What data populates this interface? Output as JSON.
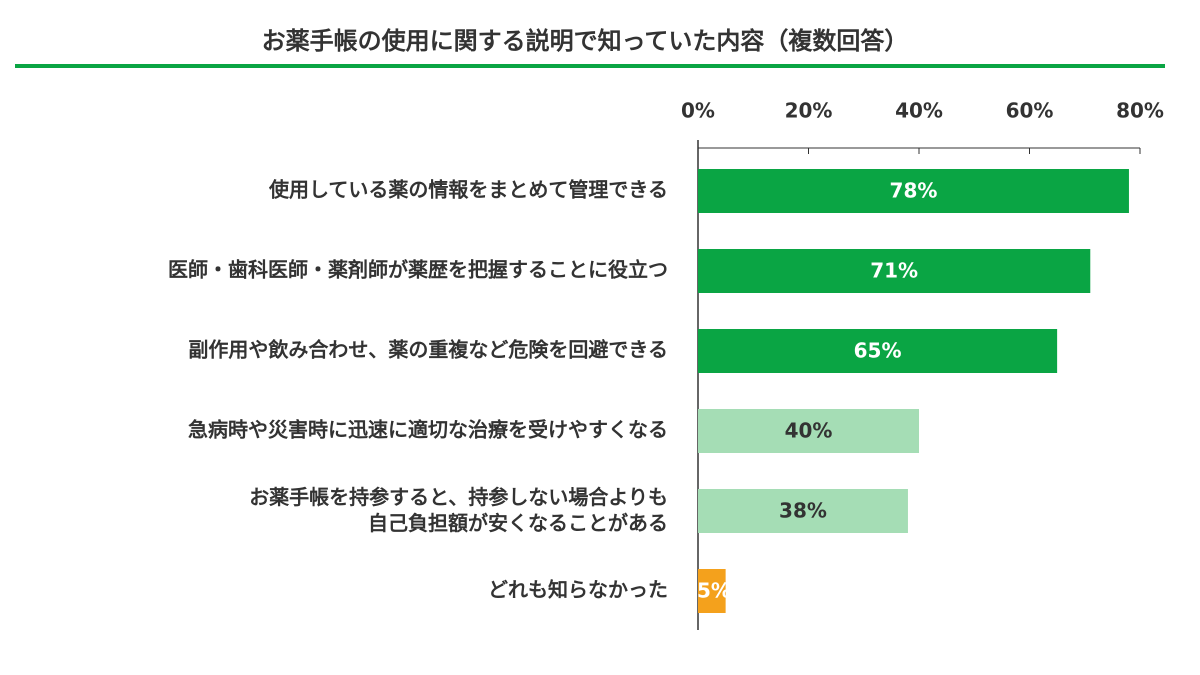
{
  "chart_data": {
    "type": "bar",
    "orientation": "horizontal",
    "title": "お薬手帳の使用に関する説明で知っていた内容（複数回答）",
    "categories": [
      "使用している薬の情報をまとめて管理できる",
      "医師・歯科医師・薬剤師が薬歴を把握することに役立つ",
      "副作用や飲み合わせ、薬の重複など危険を回避できる",
      "急病時や災害時に迅速に適切な治療を受けやすくなる",
      "お薬手帳を持参すると、持参しない場合よりも\n自己負担額が安くなることがある",
      "どれも知らなかった"
    ],
    "values": [
      78,
      71,
      65,
      40,
      38,
      5
    ],
    "value_labels": [
      "78%",
      "71%",
      "65%",
      "40%",
      "38%",
      "5%"
    ],
    "colors": [
      "#0aa544",
      "#0aa544",
      "#0aa544",
      "#a5ddb5",
      "#a5ddb5",
      "#f4a11c"
    ],
    "xlim": [
      0,
      80
    ],
    "xticks": [
      {
        "value": 0,
        "label": "0%"
      },
      {
        "value": 20,
        "label": "20%"
      },
      {
        "value": 40,
        "label": "40%"
      },
      {
        "value": 60,
        "label": "60%"
      },
      {
        "value": 80,
        "label": "80%"
      }
    ]
  }
}
